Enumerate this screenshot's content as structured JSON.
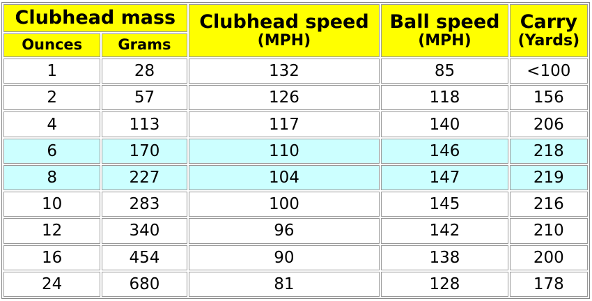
{
  "table": {
    "header": {
      "group": "Clubhead mass",
      "subcolumns": [
        "Ounces",
        "Grams"
      ],
      "columns": [
        {
          "title": "Clubhead speed",
          "unit": "(MPH)"
        },
        {
          "title": "Ball speed",
          "unit": "(MPH)"
        },
        {
          "title": "Carry",
          "unit": "(Yards)"
        }
      ]
    },
    "rows": [
      [
        1,
        28,
        132,
        85,
        "<100"
      ],
      [
        2,
        57,
        126,
        118,
        156
      ],
      [
        4,
        113,
        117,
        140,
        206
      ],
      [
        6,
        170,
        110,
        146,
        218
      ],
      [
        8,
        227,
        104,
        147,
        219
      ],
      [
        10,
        283,
        100,
        145,
        216
      ],
      [
        12,
        340,
        96,
        142,
        210
      ],
      [
        16,
        454,
        90,
        138,
        200
      ],
      [
        24,
        680,
        81,
        128,
        178
      ]
    ]
  }
}
